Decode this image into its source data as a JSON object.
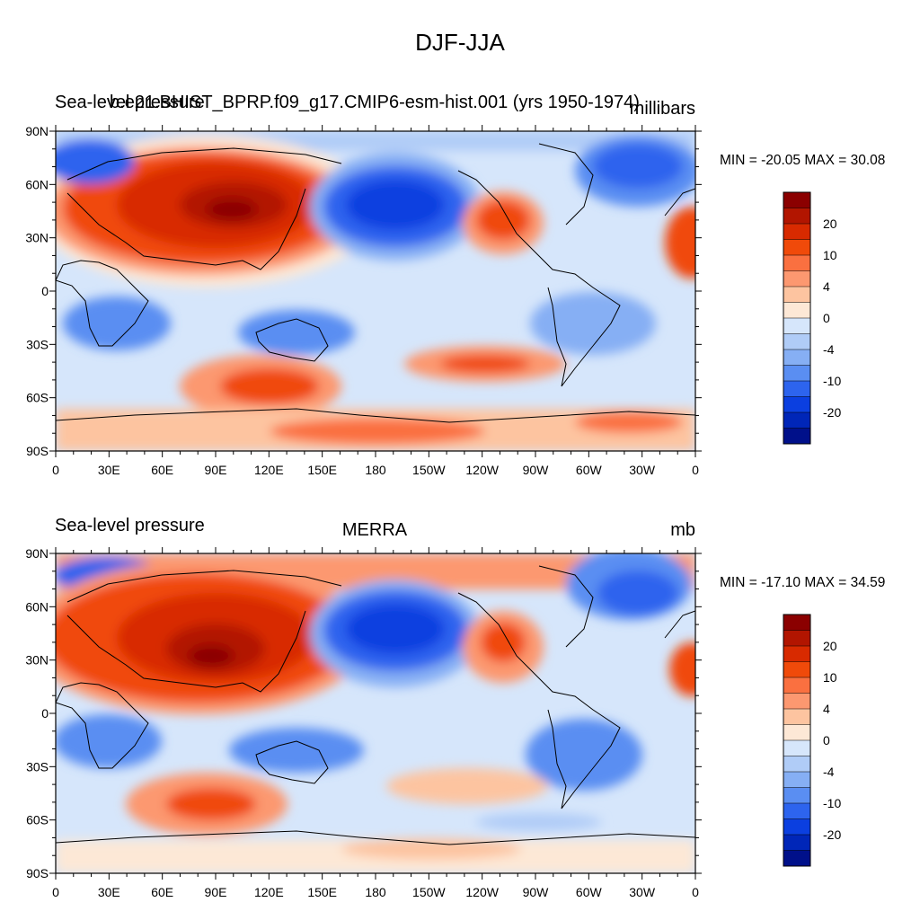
{
  "figure_title": "DJF-JJA",
  "colorbar": {
    "labels": [
      "20",
      "10",
      "4",
      "0",
      "-4",
      "-10",
      "-20"
    ],
    "colors": [
      "#8b0000",
      "#b21500",
      "#d82a00",
      "#f04a0a",
      "#fa7040",
      "#fc9870",
      "#fdc4a0",
      "#fde8d6",
      "#d6e6fb",
      "#b0ccf7",
      "#86aff4",
      "#5a8ef2",
      "#2d64ee",
      "#0b3fe0",
      "#0026b8",
      "#00108a"
    ]
  },
  "lon_ticks": [
    "0",
    "30E",
    "60E",
    "90E",
    "120E",
    "150E",
    "180",
    "150W",
    "120W",
    "90W",
    "60W",
    "30W",
    "0"
  ],
  "lat_ticks": [
    "90N",
    "60N",
    "30N",
    "0",
    "30S",
    "60S",
    "90S"
  ],
  "panels": [
    {
      "left_title": "Sea-level pressure",
      "center_title": "b.e21.BHIST_BPRP.f09_g17.CMIP6-esm-hist.001 (yrs 1950-1974)",
      "units": "millibars",
      "min_max": "MIN = -20.05 MAX =  30.08"
    },
    {
      "left_title": "Sea-level pressure",
      "center_title": "MERRA",
      "units": "mb",
      "min_max": "MIN = -17.10 MAX =  34.59"
    }
  ]
}
